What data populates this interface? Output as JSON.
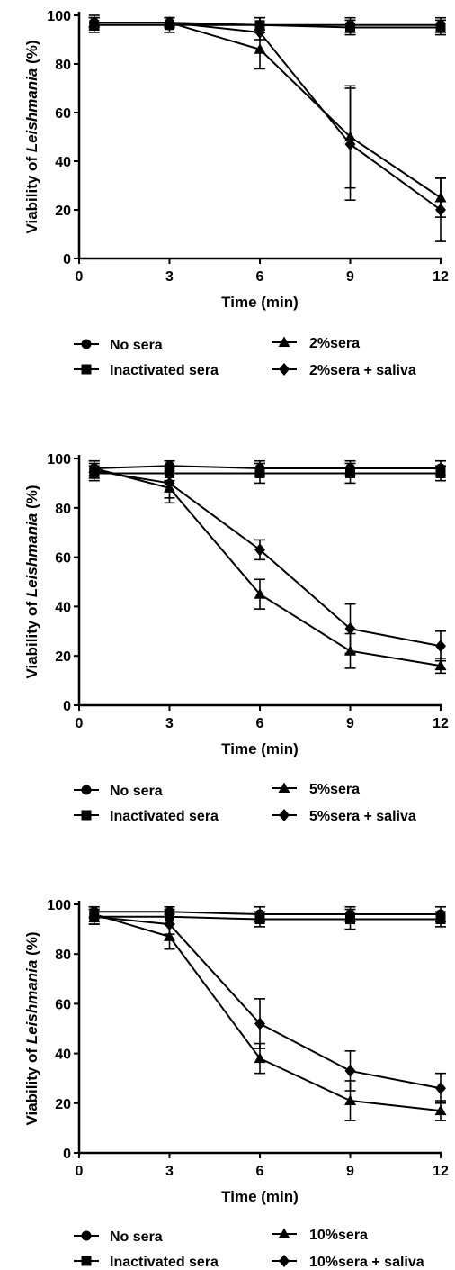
{
  "chart_data": [
    {
      "type": "line",
      "title": "",
      "xlabel": "Time (min)",
      "ylabel_prefix": "Viability of ",
      "ylabel_italic": "Leishmania",
      "ylabel_suffix": " (%)",
      "xlim": [
        0,
        12
      ],
      "ylim": [
        0,
        100
      ],
      "x_ticks": [
        "0",
        "3",
        "6",
        "9",
        "12"
      ],
      "y_ticks": [
        "0",
        "20",
        "40",
        "60",
        "80",
        "100"
      ],
      "x": [
        0.5,
        3,
        6,
        9,
        12
      ],
      "series": [
        {
          "name": "No sera",
          "marker": "circle",
          "values": [
            97,
            97,
            96,
            96,
            96
          ],
          "errors": [
            3,
            2,
            3,
            3,
            3
          ]
        },
        {
          "name": "Inactivated sera",
          "marker": "square",
          "values": [
            96,
            96,
            96,
            95,
            95
          ],
          "errors": [
            3,
            3,
            3,
            3,
            3
          ]
        },
        {
          "name": "2%sera",
          "marker": "triangle",
          "values": [
            97,
            97,
            86,
            50,
            25
          ],
          "errors": [
            2,
            2,
            8,
            21,
            8
          ]
        },
        {
          "name": "2%sera + saliva",
          "marker": "diamond",
          "values": [
            97,
            97,
            93,
            47,
            20
          ],
          "errors": [
            2,
            2,
            3,
            23,
            13
          ]
        }
      ]
    },
    {
      "type": "line",
      "title": "",
      "xlabel": "Time (min)",
      "ylabel_prefix": "Viability of ",
      "ylabel_italic": "Leishmania",
      "ylabel_suffix": " (%)",
      "xlim": [
        0,
        12
      ],
      "ylim": [
        0,
        100
      ],
      "x_ticks": [
        "0",
        "3",
        "6",
        "9",
        "12"
      ],
      "y_ticks": [
        "0",
        "20",
        "40",
        "60",
        "80",
        "100"
      ],
      "x": [
        0.5,
        3,
        6,
        9,
        12
      ],
      "series": [
        {
          "name": "No sera",
          "marker": "circle",
          "values": [
            96,
            97,
            96,
            96,
            96
          ],
          "errors": [
            3,
            2,
            3,
            3,
            3
          ]
        },
        {
          "name": "Inactivated sera",
          "marker": "square",
          "values": [
            94,
            94,
            94,
            94,
            94
          ],
          "errors": [
            3,
            3,
            4,
            4,
            3
          ]
        },
        {
          "name": "5%sera",
          "marker": "triangle",
          "values": [
            96,
            88,
            45,
            22,
            16
          ],
          "errors": [
            3,
            6,
            6,
            7,
            3
          ]
        },
        {
          "name": "5%sera + saliva",
          "marker": "diamond",
          "values": [
            95,
            90,
            63,
            31,
            24
          ],
          "errors": [
            3,
            6,
            4,
            10,
            6
          ]
        }
      ]
    },
    {
      "type": "line",
      "title": "",
      "xlabel": "Time (min)",
      "ylabel_prefix": "Viability of ",
      "ylabel_italic": "Leishmania",
      "ylabel_suffix": " (%)",
      "xlim": [
        0,
        12
      ],
      "ylim": [
        0,
        100
      ],
      "x_ticks": [
        "0",
        "3",
        "6",
        "9",
        "12"
      ],
      "y_ticks": [
        "0",
        "20",
        "40",
        "60",
        "80",
        "100"
      ],
      "x": [
        0.5,
        3,
        6,
        9,
        12
      ],
      "series": [
        {
          "name": "No sera",
          "marker": "circle",
          "values": [
            97,
            97,
            96,
            96,
            96
          ],
          "errors": [
            2,
            2,
            3,
            3,
            3
          ]
        },
        {
          "name": "Inactivated sera",
          "marker": "square",
          "values": [
            95,
            95,
            94,
            94,
            94
          ],
          "errors": [
            3,
            3,
            3,
            4,
            3
          ]
        },
        {
          "name": "10%sera",
          "marker": "triangle",
          "values": [
            96,
            87,
            38,
            21,
            17
          ],
          "errors": [
            3,
            5,
            6,
            8,
            4
          ]
        },
        {
          "name": "10%sera + saliva",
          "marker": "diamond",
          "values": [
            95,
            92,
            52,
            33,
            26
          ],
          "errors": [
            3,
            4,
            10,
            8,
            6
          ]
        }
      ]
    }
  ],
  "colors": {
    "ink": "#000000",
    "background": "#ffffff"
  }
}
